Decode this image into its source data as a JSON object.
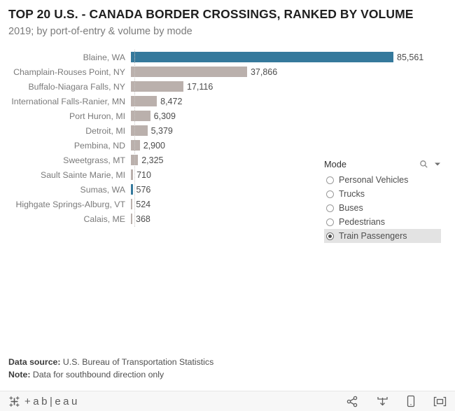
{
  "header": {
    "title": "TOP 20 U.S. - CANADA BORDER CROSSINGS, RANKED BY VOLUME",
    "subtitle": "2019; by port-of-entry & volume by mode"
  },
  "chart_data": {
    "type": "bar",
    "orientation": "horizontal",
    "title": "TOP 20 U.S. - CANADA BORDER CROSSINGS, RANKED BY VOLUME",
    "subtitle": "2019; by port-of-entry & volume by mode",
    "categories": [
      "Blaine, WA",
      "Champlain-Rouses Point, NY",
      "Buffalo-Niagara Falls, NY",
      "International Falls-Ranier, MN",
      "Port Huron, MI",
      "Detroit, MI",
      "Pembina, ND",
      "Sweetgrass, MT",
      "Sault Sainte Marie, MI",
      "Sumas, WA",
      "Highgate Springs-Alburg, VT",
      "Calais, ME"
    ],
    "values": [
      85561,
      37866,
      17116,
      8472,
      6309,
      5379,
      2900,
      2325,
      710,
      576,
      524,
      368
    ],
    "display_values": [
      "85,561",
      "37,866",
      "17,116",
      "8,472",
      "6,309",
      "5,379",
      "2,900",
      "2,325",
      "710",
      "576",
      "524",
      "368"
    ],
    "colors": [
      "#35799c",
      "#bab0ac",
      "#bab0ac",
      "#bab0ac",
      "#bab0ac",
      "#bab0ac",
      "#bab0ac",
      "#bab0ac",
      "#bab0ac",
      "#35799c",
      "#bab0ac",
      "#bab0ac"
    ],
    "highlight_color": "#35799c",
    "default_color": "#bab0ac",
    "xlim": [
      0,
      85561
    ],
    "grid": false,
    "value_labels_shown": true,
    "selected_mode": "Train Passengers"
  },
  "mode_filter": {
    "title": "Mode",
    "options": [
      {
        "label": "Personal Vehicles",
        "selected": false
      },
      {
        "label": "Trucks",
        "selected": false
      },
      {
        "label": "Buses",
        "selected": false
      },
      {
        "label": "Pedestrians",
        "selected": false
      },
      {
        "label": "Train Passengers",
        "selected": true
      }
    ]
  },
  "notes": {
    "source_label": "Data source:",
    "source_text": " U.S. Bureau of Transportation Statistics",
    "note_label": "Note:",
    "note_text": " Data for southbound direction only"
  },
  "footer": {
    "logo_text": "+ab|eau",
    "icons": [
      "share",
      "download",
      "device-preview",
      "fullscreen"
    ]
  }
}
